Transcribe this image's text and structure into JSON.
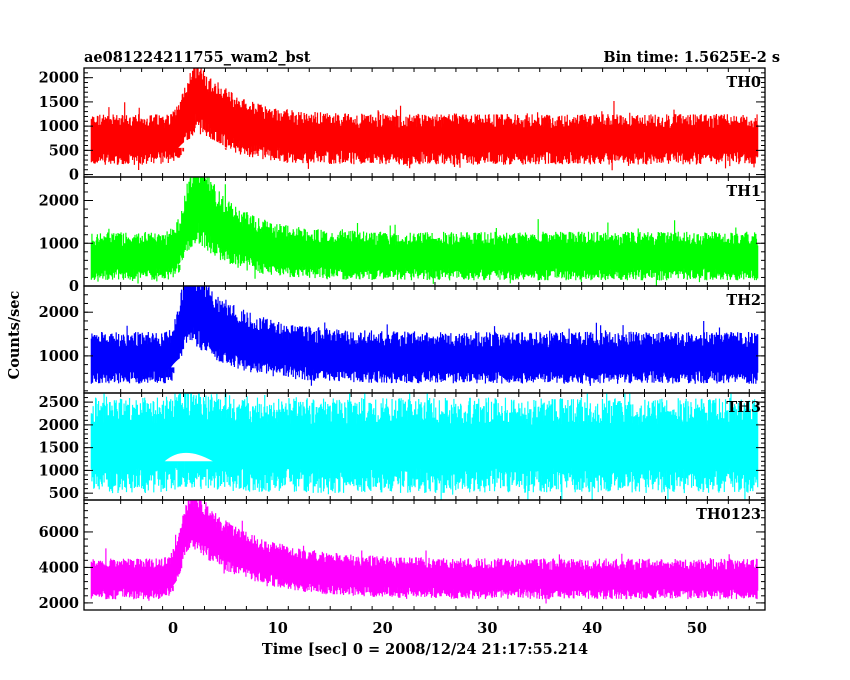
{
  "header": {
    "file_name": "ae081224211755_wam2_bst",
    "bin_time": "Bin time: 1.5625E-2 s"
  },
  "chart_data": {
    "type": "line",
    "title": "ae081224211755_wam2_bst",
    "xlabel": "Time [sec] 0 = 2008/12/24 21:17:55.214",
    "ylabel": "Counts/sec",
    "xlim": [
      -8.5,
      56.5
    ],
    "x_ticks": [
      0,
      10,
      20,
      30,
      40,
      50
    ],
    "bin_time_s": 0.015625,
    "panels": [
      {
        "name": "TH0",
        "color": "#ff0000",
        "ylim": [
          -50,
          2200
        ],
        "y_ticks": [
          0,
          500,
          1000,
          1500,
          2000
        ],
        "baseline": 700,
        "noise_hi": 550,
        "noise_lo": 500,
        "peak": {
          "t": 2.3,
          "amp": 900,
          "rise": 1.4,
          "decay": 3.5
        }
      },
      {
        "name": "TH1",
        "color": "#00ff00",
        "ylim": [
          0,
          2550
        ],
        "y_ticks": [
          0,
          1000,
          2000
        ],
        "baseline": 650,
        "noise_hi": 620,
        "noise_lo": 520,
        "peak": {
          "t": 2.3,
          "amp": 1300,
          "rise": 1.4,
          "decay": 3.5
        }
      },
      {
        "name": "TH2",
        "color": "#0000ff",
        "ylim": [
          150,
          2600
        ],
        "y_ticks": [
          1000,
          2000
        ],
        "baseline": 900,
        "noise_hi": 650,
        "noise_lo": 540,
        "peak": {
          "t": 1.6,
          "amp": 1250,
          "rise": 1.1,
          "decay": 4.5
        }
      },
      {
        "name": "TH3",
        "color": "#00ffff",
        "ylim": [
          350,
          2700
        ],
        "y_ticks": [
          500,
          1000,
          1500,
          2000,
          2500
        ],
        "baseline": 1500,
        "noise_hi": 1100,
        "noise_lo": 1000,
        "peak": {
          "t": 1.0,
          "amp": 200,
          "rise": 1.0,
          "decay": 3.0
        }
      },
      {
        "name": "TH0123",
        "color": "#ff00ff",
        "ylim": [
          1600,
          7800
        ],
        "y_ticks": [
          2000,
          4000,
          6000
        ],
        "baseline": 3300,
        "noise_hi": 1200,
        "noise_lo": 1100,
        "peak": {
          "t": 1.8,
          "amp": 3400,
          "rise": 1.3,
          "decay": 5.5
        }
      }
    ]
  }
}
